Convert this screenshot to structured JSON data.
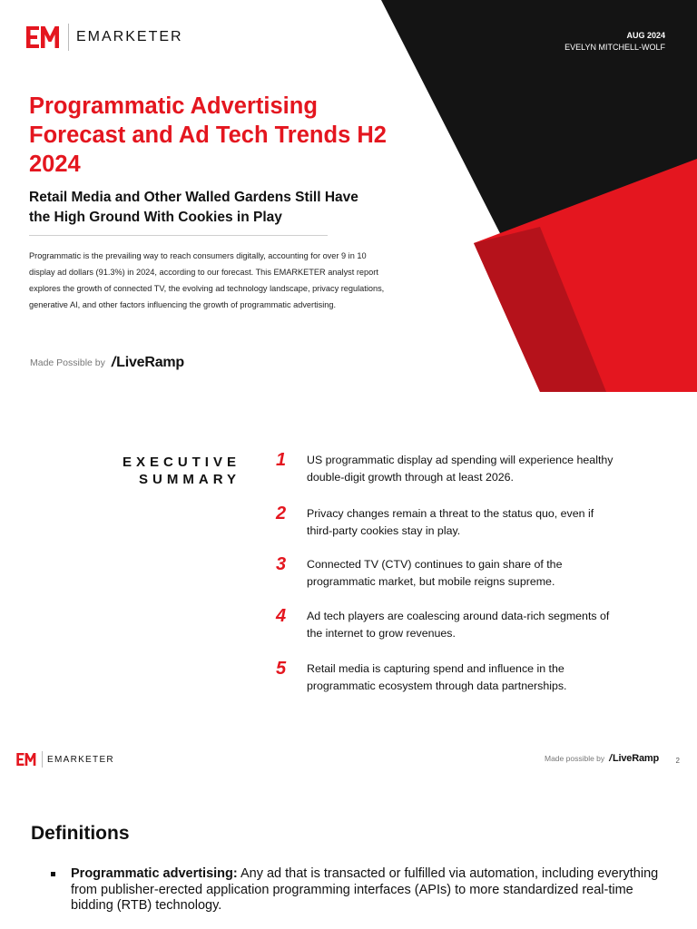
{
  "cover": {
    "brand": "EMARKETER",
    "date": "AUG 2024",
    "author": "EVELYN MITCHELL-WOLF",
    "title": "Programmatic Advertising Forecast and Ad Tech Trends H2 2024",
    "subtitle": "Retail Media and Other Walled Gardens Still Have the High Ground With Cookies in Play",
    "abstract": "Programmatic is the prevailing way to reach consumers digitally, accounting for over 9 in 10 display ad dollars (91.3%) in 2024, according to our forecast. This EMARKETER analyst report explores the growth of connected TV, the evolving ad technology landscape, privacy regulations, generative AI, and other factors influencing the growth of programmatic advertising.",
    "made_possible_label": "Made Possible by",
    "sponsor": "LiveRamp",
    "sponsor_slash": "/",
    "colors": {
      "red": "#e4161f",
      "dark_red": "#b5121b",
      "black": "#141414"
    }
  },
  "executive_summary": {
    "label_line1": "EXECUTIVE",
    "label_line2": "SUMMARY",
    "items": [
      {
        "num": "1",
        "text": "US programmatic display ad spending will experience healthy double-digit growth through at least 2026."
      },
      {
        "num": "2",
        "text": "Privacy changes remain a threat to the status quo, even if third-party cookies stay in play."
      },
      {
        "num": "3",
        "text": "Connected TV (CTV) continues to gain share of the programmatic market, but mobile reigns supreme."
      },
      {
        "num": "4",
        "text": "Ad tech players are coalescing around data-rich segments of the internet to grow revenues."
      },
      {
        "num": "5",
        "text": "Retail media is capturing spend and influence in the programmatic ecosystem through data partnerships."
      }
    ]
  },
  "page2": {
    "brand": "EMARKETER",
    "made_possible_label": "Made possible by",
    "sponsor": "LiveRamp",
    "sponsor_slash": "/",
    "page_number": "2",
    "definitions_title": "Definitions",
    "definitions": [
      {
        "term": "Programmatic advertising:",
        "text": " Any ad that is transacted or fulfilled via automation, including everything from publisher-erected application programming interfaces (APIs) to more standardized real-time bidding (RTB) technology."
      }
    ]
  }
}
